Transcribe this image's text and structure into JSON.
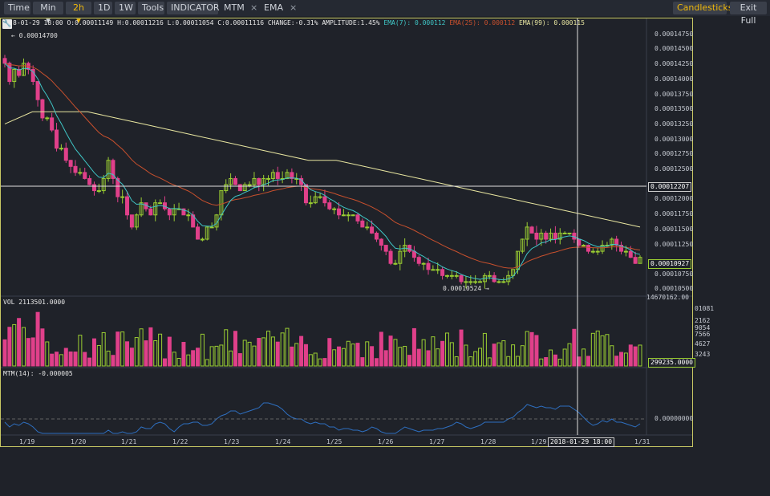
{
  "toolbar": {
    "time": "Time",
    "min": "Min",
    "interval": "2h",
    "d1": "1D",
    "w1": "1W",
    "tools": "Tools",
    "indicator": "INDICATOR",
    "mtm": "MTM",
    "ema": "EMA",
    "close_mark": "×",
    "candlesticks": "Candlesticks",
    "exit_full": "Exit Full"
  },
  "info_bar": {
    "date": "8-01-29 18:00",
    "ohlc": "O:0.00011149 H:0.00011216 L:0.00011054 C:0.00011116 CHANGE:-0.31% AMPLITUDE:1.45%",
    "ema7": "EMA(7): 0.000112",
    "ema25": "EMA(25): 0.000112",
    "ema99": "EMA(99): 0.000115"
  },
  "annotations": {
    "high": "0.00014700",
    "low": "0.00010524",
    "crosshair_price": "0.00012207",
    "last_price": "0.00010927",
    "vol_last": "299235.0000",
    "mtm_last": "0.00000000",
    "crosshair_time": "2018-01-29 18:00"
  },
  "price_axis": [
    "0.00014750",
    "0.00014500",
    "0.00014250",
    "0.00014000",
    "0.00013750",
    "0.00013500",
    "0.00013250",
    "0.00013000",
    "0.00012750",
    "0.00012500",
    "0.00012000",
    "0.00011750",
    "0.00011500",
    "0.00011250",
    "0.00010750",
    "0.00010500"
  ],
  "vol_max_label": "14670162.00",
  "vol_axis": [
    "01081",
    "2162",
    "9054",
    "7566",
    "4627",
    "3243"
  ],
  "volume_title": "VOL 2113501.0000",
  "mtm_title": "MTM(14): -0.000005",
  "x_labels": [
    "1/19",
    "1/20",
    "1/21",
    "1/22",
    "1/23",
    "1/24",
    "1/25",
    "1/26",
    "1/27",
    "1/28",
    "1/29",
    "1/31"
  ],
  "colors": {
    "up": "#9acd32",
    "down": "#e0408a",
    "ema7": "#3fc5c5",
    "ema25": "#c8502d",
    "ema99": "#e8e6a0",
    "mtm": "#2e6fc0",
    "accent": "#f0b90b"
  },
  "chart_data": {
    "type": "candlestick",
    "interval": "2h",
    "closes": [
      0.000142,
      0.000139,
      0.000141,
      0.00014,
      0.000142,
      0.000141,
      0.000139,
      0.000136,
      0.000133,
      0.000133,
      0.000131,
      0.000128,
      0.000128,
      0.000126,
      0.000125,
      0.000124,
      0.000124,
      0.000123,
      0.000122,
      0.000121,
      0.000121,
      0.000123,
      0.000126,
      0.000123,
      0.00012,
      0.00012,
      0.000117,
      0.000115,
      0.000117,
      0.000119,
      0.000118,
      0.000117,
      0.000119,
      0.000119,
      0.000118,
      0.000117,
      0.000118,
      0.000118,
      0.000117,
      0.000117,
      0.000115,
      0.000113,
      0.000113,
      0.000115,
      0.000115,
      0.000117,
      0.000121,
      0.000122,
      0.000123,
      0.000122,
      0.000121,
      0.000122,
      0.000122,
      0.000123,
      0.000122,
      0.000123,
      0.000123,
      0.000124,
      0.000123,
      0.000123,
      0.000124,
      0.000123,
      0.000123,
      0.000122,
      0.000119,
      0.000119,
      0.00012,
      0.00012,
      0.000119,
      0.000118,
      0.000118,
      0.000117,
      0.000117,
      0.000117,
      0.000117,
      0.000116,
      0.000115,
      0.000115,
      0.000114,
      0.000113,
      0.000112,
      0.000111,
      0.000109,
      0.000109,
      0.000111,
      0.000112,
      0.000111,
      0.00011,
      0.000109,
      0.000109,
      0.000108,
      0.000108,
      0.000108,
      0.000107,
      0.000107,
      0.000107,
      0.000107,
      0.000106,
      0.000106,
      0.000106,
      0.000106,
      0.000106,
      0.000107,
      0.000107,
      0.000106,
      0.000106,
      0.000106,
      0.000107,
      0.000108,
      0.000111,
      0.000113,
      0.000115,
      0.000114,
      0.000113,
      0.000114,
      0.000113,
      0.000114,
      0.000113,
      0.000114,
      0.000114,
      0.000114,
      0.000113,
      0.000112,
      0.000112,
      0.000111,
      0.000111,
      0.000111,
      0.000112,
      0.000112,
      0.000113,
      0.000112,
      0.000111,
      0.000111,
      0.00011,
      0.000109,
      0.00011
    ],
    "ema99": [
      0.000132,
      0.000134,
      0.000134,
      0.000134,
      0.000133,
      0.000132,
      0.000131,
      0.00013,
      0.000129,
      0.000128,
      0.000127,
      0.000126,
      0.000126,
      0.000125,
      0.000124,
      0.000123,
      0.000122,
      0.000121,
      0.00012,
      0.000119,
      0.000118,
      0.000117,
      0.000116,
      0.000115
    ],
    "price_range": [
      0.000104,
      0.000149
    ],
    "volume_range": [
      0,
      14670162
    ],
    "mtm_zero_line": 0
  }
}
